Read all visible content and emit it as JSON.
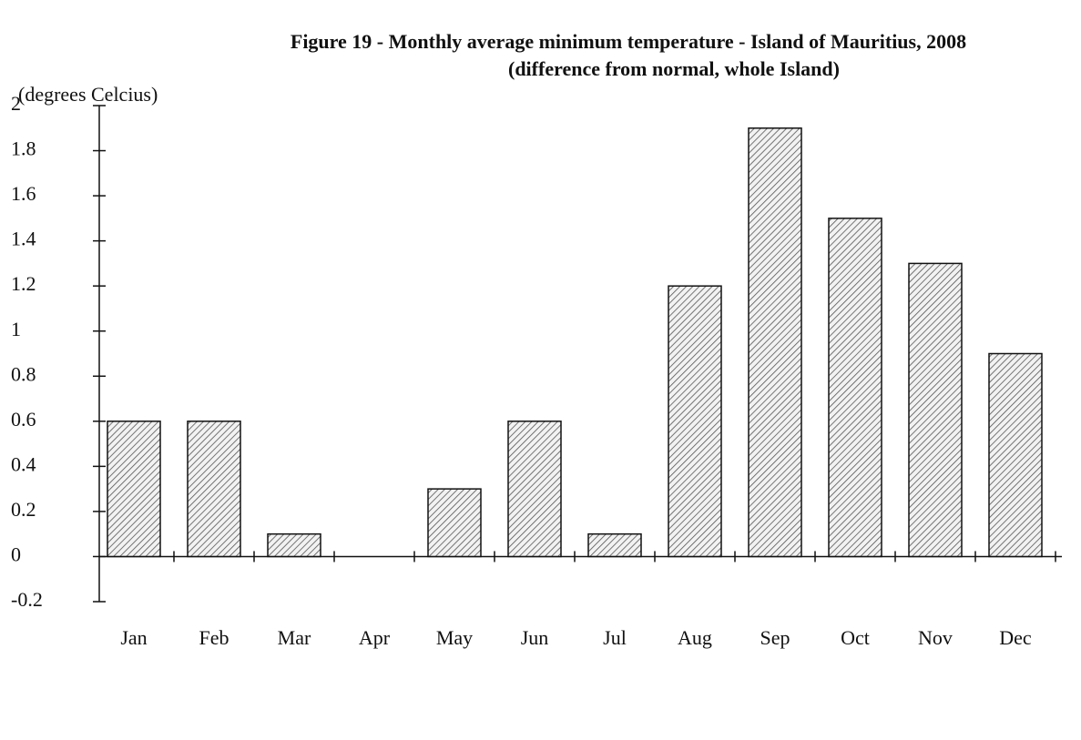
{
  "chart_data": {
    "type": "bar",
    "title": "Figure 19 -  Monthly average minimum temperature - Island of Mauritius, 2008",
    "subtitle": "(difference from normal, whole Island)",
    "y_axis_label": "(degrees Celcius)",
    "categories": [
      "Jan",
      "Feb",
      "Mar",
      "Apr",
      "May",
      "Jun",
      "Jul",
      "Aug",
      "Sep",
      "Oct",
      "Nov",
      "Dec"
    ],
    "values": [
      0.6,
      0.6,
      0.1,
      0,
      0.3,
      0.6,
      0.1,
      1.2,
      1.9,
      1.5,
      1.3,
      0.9
    ],
    "color": "#555555",
    "ylim": [
      -0.2,
      2
    ],
    "yticks": [
      -0.2,
      0,
      0.2,
      0.4,
      0.6,
      0.8,
      1,
      1.2,
      1.4,
      1.6,
      1.8,
      2
    ],
    "grid": false
  }
}
